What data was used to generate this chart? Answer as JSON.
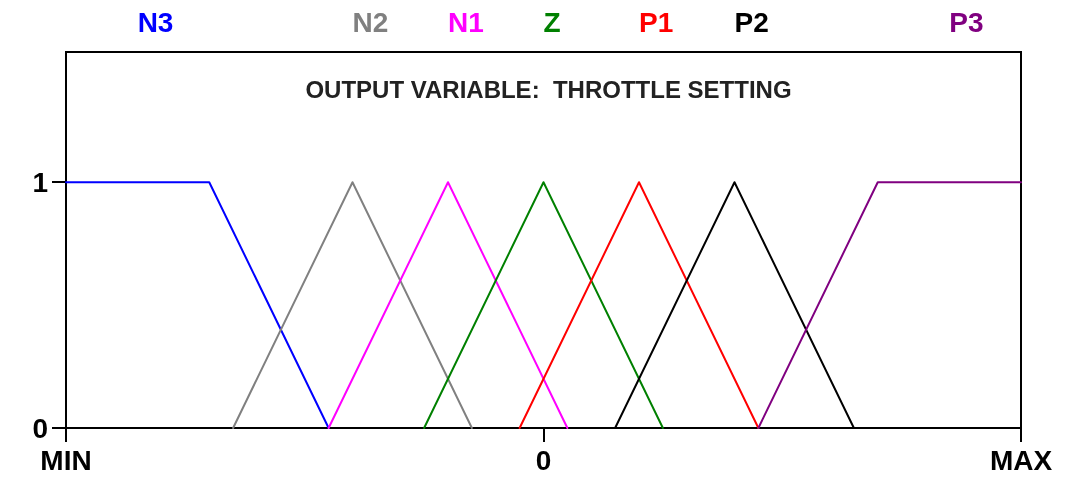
{
  "chart_data": {
    "type": "line",
    "title": "OUTPUT VARIABLE:  THROTTLE SETTING",
    "categories": [
      "MIN",
      null,
      null,
      null,
      null,
      null,
      null,
      null,
      null,
      null,
      null,
      null,
      null,
      null,
      null,
      null,
      null,
      null,
      null,
      null,
      "0",
      null,
      null,
      null,
      null,
      null,
      null,
      null,
      null,
      null,
      null,
      null,
      null,
      null,
      null,
      null,
      null,
      null,
      null,
      null,
      "MAX"
    ],
    "ylim": [
      0,
      1.53
    ],
    "yticks": [
      0,
      1
    ],
    "grid": false,
    "legend": false,
    "marker": "none",
    "line_style": "solid",
    "series": [
      {
        "name": "N3",
        "color": "#0000ff",
        "values": [
          1,
          null,
          null,
          null,
          null,
          null,
          1,
          null,
          null,
          null,
          null,
          0,
          null,
          null,
          null,
          null,
          null,
          null,
          null,
          null,
          null,
          null,
          null,
          null,
          null,
          null,
          null,
          null,
          null,
          null,
          null,
          null,
          null,
          null,
          null,
          null,
          null,
          null,
          null,
          null,
          null
        ]
      },
      {
        "name": "N2",
        "color": "#808080",
        "values": [
          null,
          null,
          null,
          null,
          null,
          null,
          null,
          0,
          null,
          null,
          null,
          null,
          1,
          null,
          null,
          null,
          null,
          0,
          null,
          null,
          null,
          null,
          null,
          null,
          null,
          null,
          null,
          null,
          null,
          null,
          null,
          null,
          null,
          null,
          null,
          null,
          null,
          null,
          null,
          null,
          null
        ]
      },
      {
        "name": "N1",
        "color": "#ff00ff",
        "values": [
          null,
          null,
          null,
          null,
          null,
          null,
          null,
          null,
          null,
          null,
          null,
          0,
          null,
          null,
          null,
          null,
          1,
          null,
          null,
          null,
          null,
          0,
          null,
          null,
          null,
          null,
          null,
          null,
          null,
          null,
          null,
          null,
          null,
          null,
          null,
          null,
          null,
          null,
          null,
          null,
          null
        ]
      },
      {
        "name": "Z",
        "color": "#008000",
        "values": [
          null,
          null,
          null,
          null,
          null,
          null,
          null,
          null,
          null,
          null,
          null,
          null,
          null,
          null,
          null,
          0,
          null,
          null,
          null,
          null,
          1,
          null,
          null,
          null,
          null,
          0,
          null,
          null,
          null,
          null,
          null,
          null,
          null,
          null,
          null,
          null,
          null,
          null,
          null,
          null,
          null
        ]
      },
      {
        "name": "P1",
        "color": "#ff0000",
        "values": [
          null,
          null,
          null,
          null,
          null,
          null,
          null,
          null,
          null,
          null,
          null,
          null,
          null,
          null,
          null,
          null,
          null,
          null,
          null,
          0,
          null,
          null,
          null,
          null,
          1,
          null,
          null,
          null,
          null,
          0,
          null,
          null,
          null,
          null,
          null,
          null,
          null,
          null,
          null,
          null,
          null
        ]
      },
      {
        "name": "P2",
        "color": "#000000",
        "values": [
          null,
          null,
          null,
          null,
          null,
          null,
          null,
          null,
          null,
          null,
          null,
          null,
          null,
          null,
          null,
          null,
          null,
          null,
          null,
          null,
          null,
          null,
          null,
          0,
          null,
          null,
          null,
          null,
          1,
          null,
          null,
          null,
          null,
          0,
          null,
          null,
          null,
          null,
          null,
          null,
          null
        ]
      },
      {
        "name": "P3",
        "color": "#800080",
        "values": [
          null,
          null,
          null,
          null,
          null,
          null,
          null,
          null,
          null,
          null,
          null,
          null,
          null,
          null,
          null,
          null,
          null,
          null,
          null,
          null,
          null,
          null,
          null,
          null,
          null,
          null,
          null,
          null,
          null,
          0,
          null,
          null,
          null,
          null,
          1,
          null,
          null,
          null,
          null,
          null,
          1
        ]
      }
    ]
  }
}
